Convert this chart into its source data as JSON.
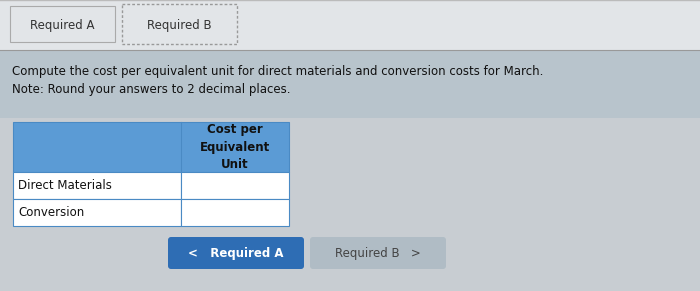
{
  "overall_bg": "#c8cdd2",
  "tab_area_bg": "#e2e5e8",
  "tab_a_text": "Required A",
  "tab_b_text": "Required B",
  "instruction_bg": "#b8c4cc",
  "instruction_text_line1": "Compute the cost per equivalent unit for direct materials and conversion costs for March.",
  "instruction_text_line2": "Note: Round your answers to 2 decimal places.",
  "table_blue_bg": "#5b9bd5",
  "table_header_text": "Cost per\nEquivalent\nUnit",
  "table_row1_label": "Direct Materials",
  "table_row2_label": "Conversion",
  "table_white_bg": "#ffffff",
  "table_border": "#4a8ac4",
  "btn_left_bg": "#2e6db4",
  "btn_left_text": "<   Required A",
  "btn_right_bg": "#b0bcc5",
  "btn_right_text": "Required B   >",
  "tab_separator_color": "#999999",
  "tab_border_color": "#aaaaaa",
  "tab_b_dotted_color": "#999999"
}
